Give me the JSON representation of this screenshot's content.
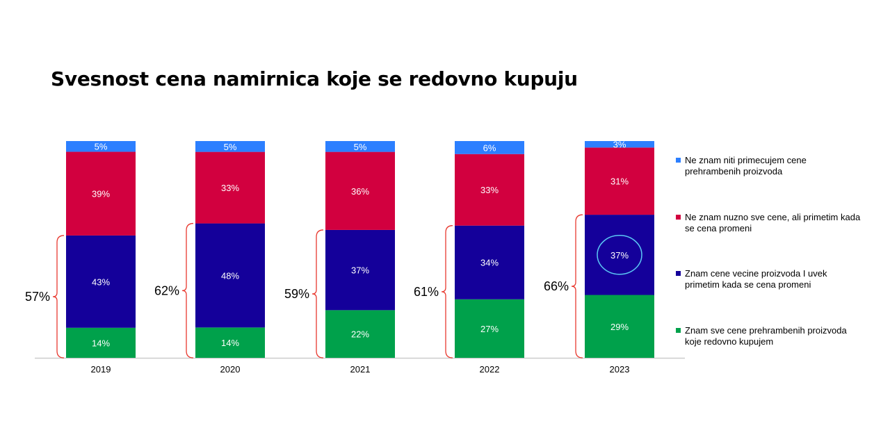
{
  "title": "Svesnost cena namirnica koje se redovno kupuju",
  "chart_data": {
    "type": "bar",
    "stacked": true,
    "categories": [
      "2019",
      "2020",
      "2021",
      "2022",
      "2023"
    ],
    "series": [
      {
        "name": "Znam sve cene prehrambenih proizvoda koje redovno kupujem",
        "values": [
          14,
          14,
          22,
          27,
          29
        ],
        "labels": [
          "14%",
          "14%",
          "22%",
          "27%",
          "29%"
        ],
        "color": "#00A14B"
      },
      {
        "name": "Znam cene vecine proizvoda I uvek primetim kada se cena promeni",
        "values": [
          43,
          48,
          37,
          34,
          37
        ],
        "labels": [
          "43%",
          "48%",
          "37%",
          "34%",
          "37%"
        ],
        "color": "#14009A"
      },
      {
        "name": "Ne znam nuzno sve cene, ali primetim kada se cena promeni",
        "values": [
          39,
          33,
          36,
          33,
          31
        ],
        "labels": [
          "39%",
          "33%",
          "36%",
          "33%",
          "31%"
        ],
        "color": "#D2003F"
      },
      {
        "name": "Ne znam niti primecujem cene prehrambenih proizvoda",
        "values": [
          5,
          5,
          5,
          6,
          3
        ],
        "labels": [
          "5%",
          "5%",
          "5%",
          "6%",
          "3%"
        ],
        "color": "#2C7FFF"
      }
    ],
    "bracket_totals": [
      "57%",
      "62%",
      "59%",
      "61%",
      "66%"
    ],
    "highlighted": {
      "category": "2023",
      "series_index": 1
    },
    "legend_position": "right",
    "grid": false,
    "colors": {
      "bracket": "#E8392F",
      "highlight_circle": "#5BC8F5",
      "axis": "#CCCCCC"
    }
  }
}
